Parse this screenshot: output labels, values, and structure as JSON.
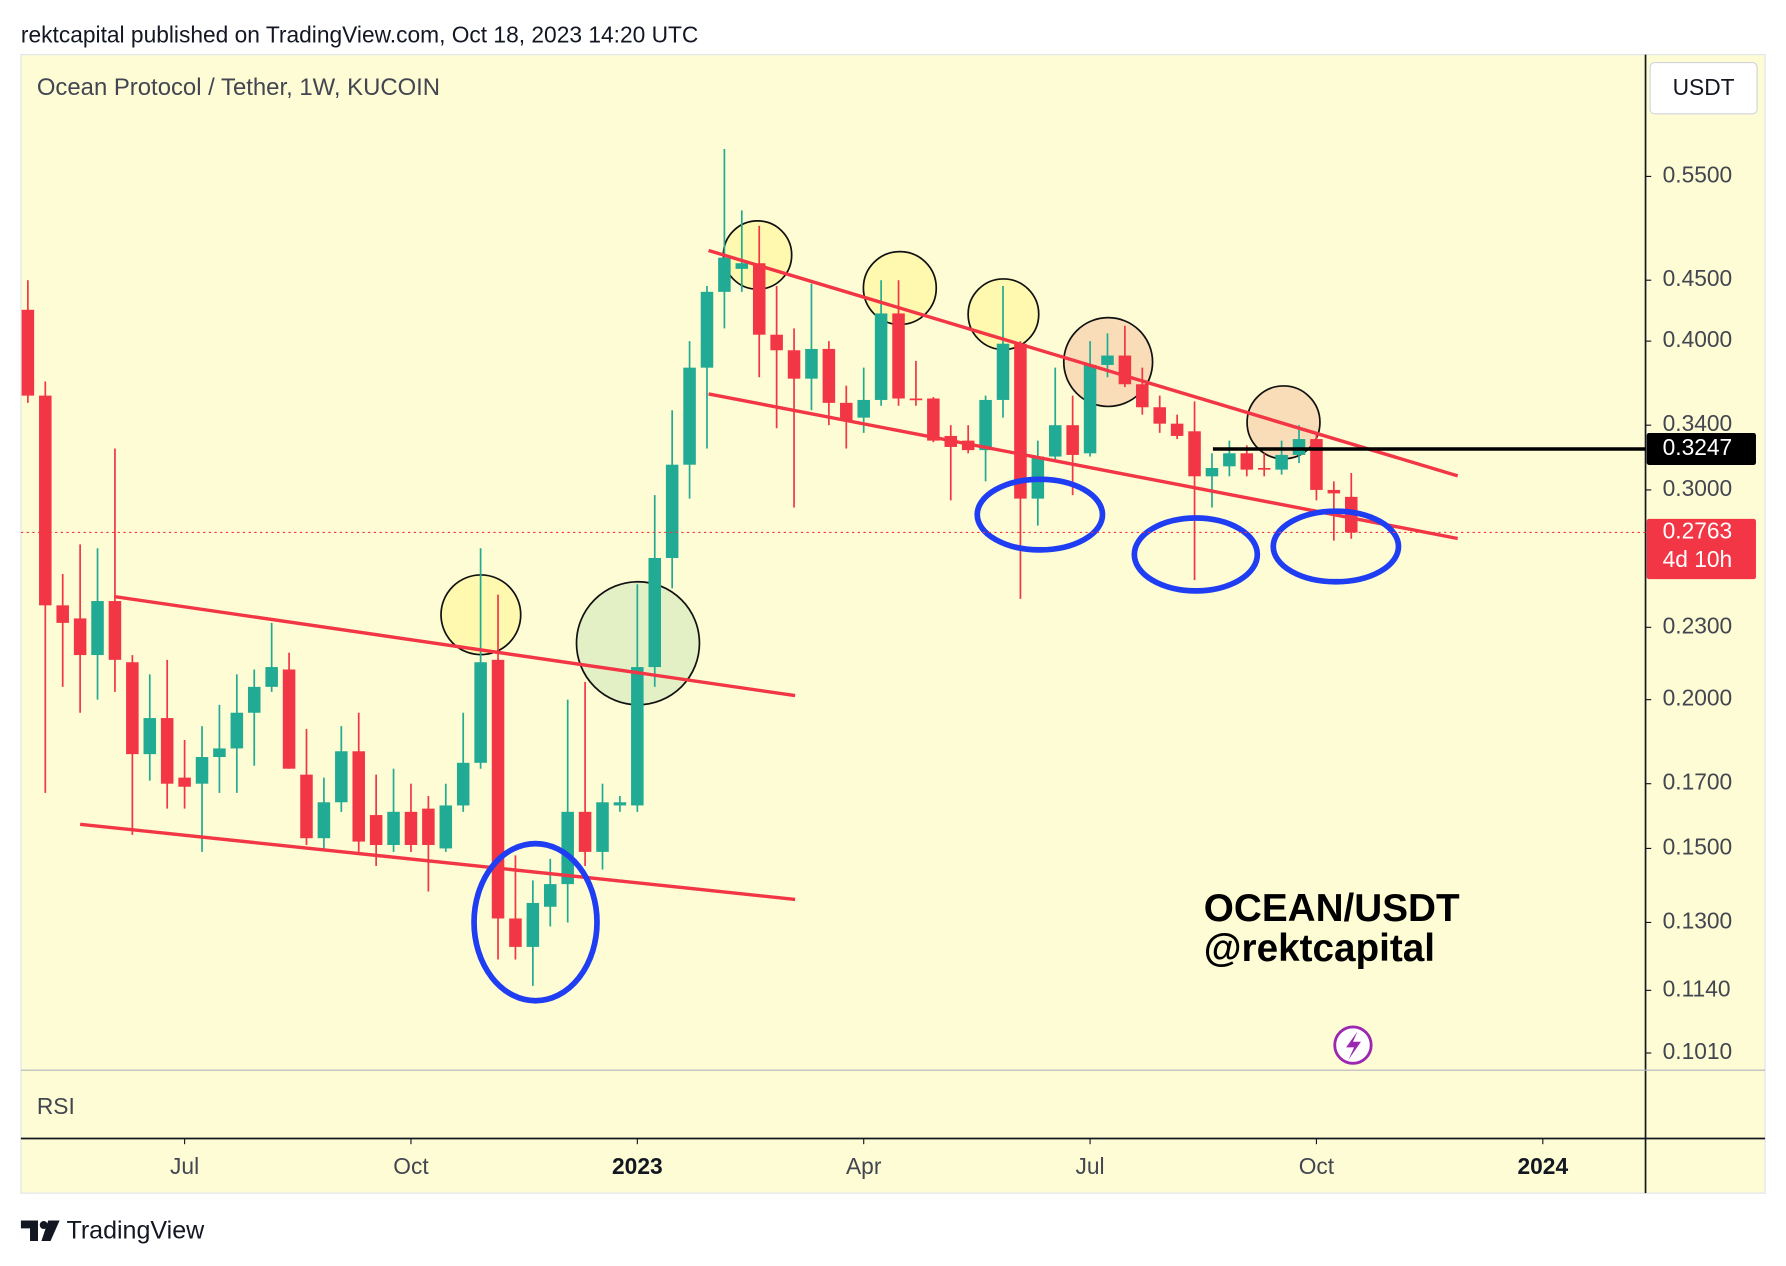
{
  "header": "rektcapital published on TradingView.com, Oct 18, 2023 14:20 UTC",
  "footer": "TradingView",
  "chart_data": {
    "type": "candlestick",
    "title": "Ocean Protocol / Tether, 1W, KUCOIN",
    "currency": "USDT",
    "indicator": "RSI",
    "annotations": [
      "OCEAN/USDT",
      "@rektcapital"
    ],
    "log_scale": true,
    "up_color": "#22ab94",
    "down_color": "#f23645",
    "open": [
      0.425,
      0.36,
      0.24,
      0.234,
      0.218,
      0.242,
      0.215,
      0.18,
      0.193,
      0.172,
      0.17,
      0.179,
      0.182,
      0.195,
      0.205,
      0.212,
      0.173,
      0.153,
      0.164,
      0.181,
      0.16,
      0.151,
      0.161,
      0.162,
      0.15,
      0.163,
      0.177,
      0.216,
      0.131,
      0.124,
      0.134,
      0.14,
      0.161,
      0.149,
      0.163,
      0.163,
      0.213,
      0.263,
      0.315,
      0.38,
      0.44,
      0.46,
      0.465,
      0.405,
      0.393,
      0.372,
      0.394,
      0.355,
      0.345,
      0.357,
      0.422,
      0.358,
      0.358,
      0.333,
      0.33,
      0.324,
      0.357,
      0.398,
      0.295,
      0.32,
      0.34,
      0.322,
      0.382,
      0.389,
      0.368,
      0.352,
      0.341,
      0.336,
      0.308,
      0.314,
      0.322,
      0.313,
      0.312,
      0.321,
      0.331,
      0.3,
      0.296
    ],
    "high": [
      0.45,
      0.37,
      0.255,
      0.27,
      0.268,
      0.325,
      0.218,
      0.21,
      0.216,
      0.185,
      0.19,
      0.198,
      0.21,
      0.212,
      0.232,
      0.219,
      0.189,
      0.172,
      0.19,
      0.195,
      0.173,
      0.175,
      0.17,
      0.166,
      0.17,
      0.195,
      0.268,
      0.245,
      0.148,
      0.141,
      0.147,
      0.2,
      0.207,
      0.17,
      0.166,
      0.25,
      0.297,
      0.35,
      0.4,
      0.445,
      0.58,
      0.515,
      0.5,
      0.445,
      0.41,
      0.447,
      0.4,
      0.367,
      0.38,
      0.45,
      0.45,
      0.385,
      0.359,
      0.34,
      0.34,
      0.36,
      0.445,
      0.4,
      0.33,
      0.38,
      0.36,
      0.4,
      0.406,
      0.412,
      0.38,
      0.36,
      0.347,
      0.356,
      0.322,
      0.33,
      0.327,
      0.322,
      0.33,
      0.34,
      0.334,
      0.305,
      0.31
    ],
    "low": [
      0.355,
      0.167,
      0.205,
      0.195,
      0.2,
      0.203,
      0.154,
      0.171,
      0.162,
      0.162,
      0.149,
      0.167,
      0.167,
      0.176,
      0.203,
      0.175,
      0.151,
      0.15,
      0.161,
      0.149,
      0.145,
      0.149,
      0.149,
      0.138,
      0.149,
      0.161,
      0.175,
      0.121,
      0.121,
      0.115,
      0.129,
      0.13,
      0.145,
      0.144,
      0.161,
      0.161,
      0.205,
      0.248,
      0.295,
      0.325,
      0.41,
      0.44,
      0.373,
      0.338,
      0.29,
      0.35,
      0.34,
      0.325,
      0.335,
      0.353,
      0.353,
      0.353,
      0.329,
      0.294,
      0.322,
      0.305,
      0.345,
      0.243,
      0.28,
      0.318,
      0.297,
      0.32,
      0.373,
      0.366,
      0.347,
      0.335,
      0.331,
      0.252,
      0.29,
      0.308,
      0.308,
      0.308,
      0.309,
      0.316,
      0.294,
      0.272,
      0.273
    ],
    "close": [
      0.36,
      0.24,
      0.232,
      0.218,
      0.242,
      0.216,
      0.18,
      0.193,
      0.17,
      0.169,
      0.179,
      0.182,
      0.195,
      0.205,
      0.213,
      0.175,
      0.153,
      0.164,
      0.181,
      0.152,
      0.151,
      0.161,
      0.151,
      0.151,
      0.163,
      0.177,
      0.215,
      0.131,
      0.124,
      0.135,
      0.14,
      0.161,
      0.149,
      0.164,
      0.164,
      0.213,
      0.263,
      0.315,
      0.38,
      0.44,
      0.47,
      0.465,
      0.405,
      0.393,
      0.372,
      0.394,
      0.355,
      0.343,
      0.357,
      0.422,
      0.358,
      0.357,
      0.33,
      0.326,
      0.324,
      0.357,
      0.398,
      0.295,
      0.32,
      0.34,
      0.321,
      0.382,
      0.389,
      0.368,
      0.352,
      0.341,
      0.333,
      0.308,
      0.313,
      0.322,
      0.312,
      0.312,
      0.321,
      0.331,
      0.3,
      0.298,
      0.2763
    ],
    "xlim": [
      -0.4,
      92.9
    ],
    "xticks": [
      {
        "value": 9,
        "label": "Jul"
      },
      {
        "value": 22,
        "label": "Oct"
      },
      {
        "value": 35,
        "label": "2023"
      },
      {
        "value": 48,
        "label": "Apr"
      },
      {
        "value": 61,
        "label": "Jul"
      },
      {
        "value": 74,
        "label": "Oct"
      },
      {
        "value": 87,
        "label": "2024"
      }
    ],
    "ylim": [
      0.0977,
      0.696
    ],
    "yticks": [
      {
        "value": 0.101,
        "label": "0.1010"
      },
      {
        "value": 0.114,
        "label": "0.1140"
      },
      {
        "value": 0.13,
        "label": "0.1300"
      },
      {
        "value": 0.15,
        "label": "0.1500"
      },
      {
        "value": 0.17,
        "label": "0.1700"
      },
      {
        "value": 0.2,
        "label": "0.2000"
      },
      {
        "value": 0.23,
        "label": "0.2300"
      },
      {
        "value": 0.3,
        "label": "0.3000"
      },
      {
        "value": 0.34,
        "label": "0.3400"
      },
      {
        "value": 0.4,
        "label": "0.4000"
      },
      {
        "value": 0.45,
        "label": "0.4500"
      },
      {
        "value": 0.55,
        "label": "0.5500"
      }
    ],
    "horizontal_line": 0.3247,
    "last_price": 0.2763,
    "countdown": "4d 10h"
  }
}
